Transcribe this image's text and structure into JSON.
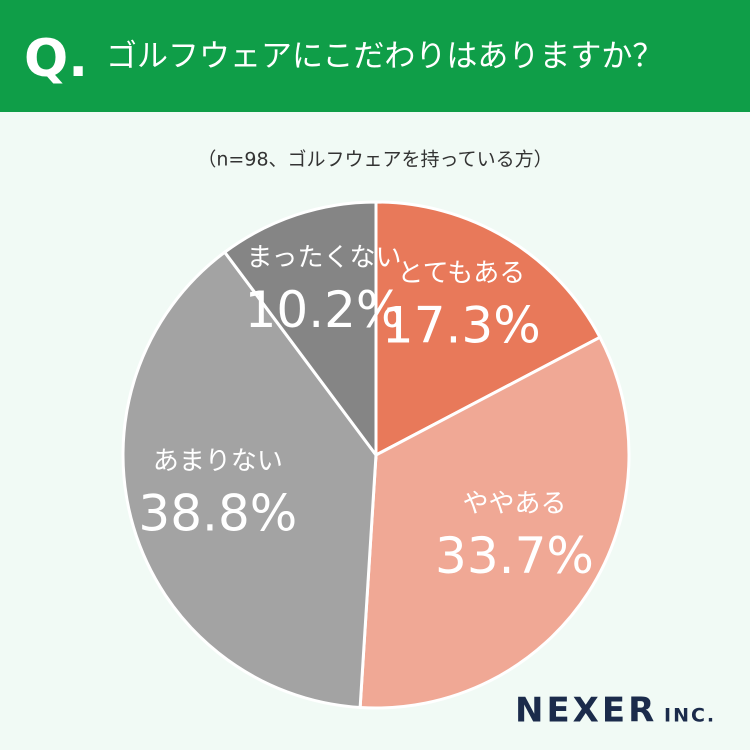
{
  "chart_data": {
    "type": "pie",
    "question_mark": "Q.",
    "title": "ゴルフウェアにこだわりはありますか？",
    "subtitle": "（n=98、ゴルフウェアを持っている方）",
    "categories": [
      "とてもある",
      "ややある",
      "あまりない",
      "まったくない"
    ],
    "values": [
      17.3,
      33.7,
      38.8,
      10.2
    ],
    "value_labels": [
      "17.3%",
      "33.7%",
      "38.8%",
      "10.2%"
    ],
    "colors": [
      "#e8795a",
      "#f0a895",
      "#a3a3a3",
      "#858585"
    ],
    "brand": "NEXER",
    "brand_suffix": "INC."
  }
}
